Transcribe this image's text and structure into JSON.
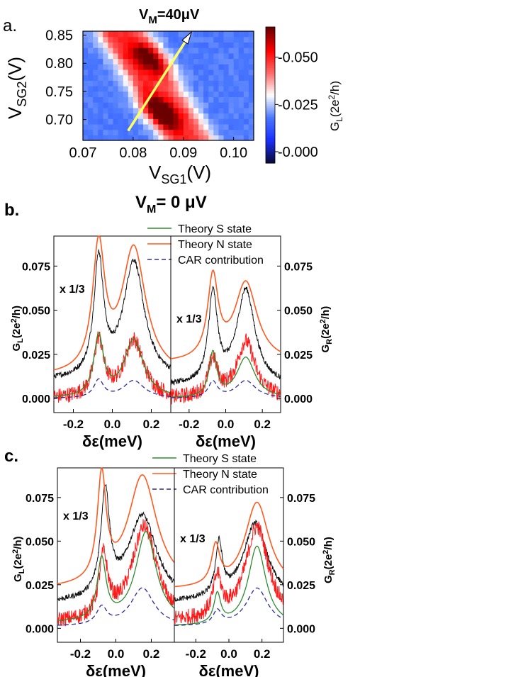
{
  "panel_a": {
    "letter": "a.",
    "title_v": "V",
    "title_sub": "M",
    "title_rest": "=40μV"
  },
  "panel_b": {
    "letter": "b.",
    "title_v": "V",
    "title_sub": "M",
    "title_rest": "= 0 μV"
  },
  "panel_c": {
    "letter": "c."
  },
  "chart_data": [
    {
      "type": "heatmap",
      "title": "VM=40μV",
      "xlabel": "VSG1(V)",
      "ylabel": "VSG2(V)",
      "colorbar_label": "GL(2e2/h)",
      "xlim": [
        0.07,
        0.104
      ],
      "ylim": [
        0.663,
        0.857
      ],
      "xticks": [
        "0.07",
        "0.08",
        "0.09",
        "0.10"
      ],
      "xtick_values": [
        0.07,
        0.08,
        0.09,
        0.1
      ],
      "yticks": [
        "0.85",
        "0.80",
        "0.75",
        "0.70"
      ],
      "ytick_values": [
        0.85,
        0.8,
        0.75,
        0.7
      ],
      "colorbar_range": [
        -0.006,
        0.066
      ],
      "colorbar_ticks": [
        "0.050",
        "0.025",
        "0.000"
      ],
      "colorbar_tick_values": [
        0.05,
        0.025,
        0.0
      ],
      "colormap": [
        "#0a0a3a",
        "#1a30ff",
        "#4a78ff",
        "#ffffff",
        "#ff6a6a",
        "#ff0000",
        "#6a0000"
      ],
      "ridges": [
        {
          "v2_center": 0.809,
          "v1_center": 0.0835,
          "slope_v1_per_v2": -0.07,
          "peak": 0.05
        },
        {
          "v2_center": 0.713,
          "v1_center": 0.0855,
          "slope_v1_per_v2": -0.07,
          "peak": 0.06
        }
      ],
      "arrow": {
        "from": [
          0.079,
          0.68
        ],
        "to": [
          0.091,
          0.847
        ],
        "color": "#ffff66"
      }
    },
    {
      "type": "line",
      "panel": "b",
      "x_label": "δε(meV)",
      "left_y_label": "GL(2e2/h)",
      "right_y_label": "GR(2e2/h)",
      "xlim": [
        -0.3,
        0.3
      ],
      "ylim": [
        -0.008,
        0.092
      ],
      "xticks": [
        "-0.2",
        "0.0",
        "0.2"
      ],
      "xtick_values": [
        -0.2,
        0.0,
        0.2
      ],
      "yticks": [
        "0.075",
        "0.050",
        "0.025",
        "0.000"
      ],
      "ytick_values": [
        0.075,
        0.05,
        0.025,
        0.0
      ],
      "scale_note": "x 1/3",
      "legend": [
        {
          "label": "Theory S state",
          "color": "#2e8b2e",
          "style": "solid"
        },
        {
          "label": "Theory N state",
          "color": "#ff5a1f",
          "style": "solid"
        },
        {
          "label": "CAR contribution",
          "color": "#2a2a9a",
          "style": "dashed"
        }
      ],
      "subpanels": [
        {
          "name": "left",
          "series": {
            "theory_N": {
              "peaks": [
                [
                  -0.07,
                  0.07,
                  0.038
                ],
                [
                  0.11,
                  0.072,
                  0.075
                ]
              ],
              "offset": 0.012
            },
            "data_N_black": {
              "peaks": [
                [
                  -0.07,
                  0.066,
                  0.03
                ],
                [
                  0.11,
                  0.067,
                  0.065
                ]
              ],
              "offset": 0.01,
              "noise": 0.0015
            },
            "theory_S": {
              "peaks": [
                [
                  -0.07,
                  0.034,
                  0.03
                ],
                [
                  0.11,
                  0.033,
                  0.06
                ]
              ],
              "offset": 0.0
            },
            "data_S_red": {
              "peaks": [
                [
                  -0.07,
                  0.032,
                  0.03
                ],
                [
                  0.11,
                  0.033,
                  0.06
                ]
              ],
              "offset": 0.0,
              "noise": 0.0045
            },
            "CAR": {
              "peaks": [
                [
                  -0.07,
                  0.01,
                  0.03
                ],
                [
                  0.11,
                  0.01,
                  0.065
                ]
              ],
              "offset": 0.0
            }
          }
        },
        {
          "name": "right",
          "series": {
            "theory_N": {
              "peaks": [
                [
                  -0.07,
                  0.046,
                  0.035
                ],
                [
                  0.11,
                  0.045,
                  0.075
                ]
              ],
              "offset": 0.02
            },
            "data_N_black": {
              "peaks": [
                [
                  -0.07,
                  0.05,
                  0.03
                ],
                [
                  0.11,
                  0.054,
                  0.06
                ]
              ],
              "offset": 0.007,
              "noise": 0.0015
            },
            "theory_S": {
              "peaks": [
                [
                  -0.07,
                  0.025,
                  0.025
                ],
                [
                  0.11,
                  0.023,
                  0.06
                ]
              ],
              "offset": 0.0
            },
            "data_S_red": {
              "peaks": [
                [
                  -0.07,
                  0.021,
                  0.03
                ],
                [
                  0.11,
                  0.032,
                  0.06
                ]
              ],
              "offset": 0.0,
              "noise": 0.0045
            },
            "CAR": {
              "peaks": [
                [
                  -0.07,
                  0.009,
                  0.03
                ],
                [
                  0.11,
                  0.01,
                  0.065
                ]
              ],
              "offset": 0.0
            }
          }
        }
      ]
    },
    {
      "type": "line",
      "panel": "c",
      "x_label": "δε(meV)",
      "left_y_label": "GL(2e2/h)",
      "right_y_label": "GR(2e2/h)",
      "xlim": [
        -0.33,
        0.33
      ],
      "ylim": [
        -0.008,
        0.092
      ],
      "xticks": [
        "-0.2",
        "0.0",
        "0.2"
      ],
      "xtick_values": [
        -0.2,
        0.0,
        0.2
      ],
      "yticks": [
        "0.075",
        "0.050",
        "0.025",
        "0.000"
      ],
      "ytick_values": [
        0.075,
        0.05,
        0.025,
        0.0
      ],
      "scale_note": "x 1/3",
      "legend": [
        {
          "label": "Theory S state",
          "color": "#2e8b2e",
          "style": "solid"
        },
        {
          "label": "Theory N state",
          "color": "#ff5a1f",
          "style": "solid"
        },
        {
          "label": "CAR contribution",
          "color": "#2a2a9a",
          "style": "dashed"
        }
      ],
      "subpanels": [
        {
          "name": "left",
          "series": {
            "theory_N": {
              "peaks": [
                [
                  -0.08,
                  0.06,
                  0.03
                ],
                [
                  0.15,
                  0.065,
                  0.1
                ]
              ],
              "offset": 0.022
            },
            "data_N_black": {
              "peaks": [
                [
                  -0.06,
                  0.06,
                  0.03
                ],
                [
                  0.15,
                  0.05,
                  0.1
                ]
              ],
              "offset": 0.014,
              "noise": 0.0015
            },
            "theory_S": {
              "peaks": [
                [
                  -0.08,
                  0.035,
                  0.03
                ],
                [
                  0.17,
                  0.052,
                  0.07
                ]
              ],
              "offset": 0.003
            },
            "data_S_red": {
              "peaks": [
                [
                  -0.07,
                  0.035,
                  0.03
                ],
                [
                  0.16,
                  0.055,
                  0.085
                ]
              ],
              "offset": 0.003,
              "noise": 0.0045
            },
            "CAR": {
              "peaks": [
                [
                  -0.08,
                  0.01,
                  0.035
                ],
                [
                  0.15,
                  0.022,
                  0.08
                ]
              ],
              "offset": 0.001
            }
          }
        },
        {
          "name": "right",
          "series": {
            "theory_N": {
              "peaks": [
                [
                  -0.08,
                  0.022,
                  0.03
                ],
                [
                  0.17,
                  0.05,
                  0.09
                ]
              ],
              "offset": 0.022
            },
            "data_N_black": {
              "peaks": [
                [
                  -0.06,
                  0.03,
                  0.025
                ],
                [
                  0.16,
                  0.045,
                  0.09
                ]
              ],
              "offset": 0.015,
              "noise": 0.0015
            },
            "theory_S": {
              "peaks": [
                [
                  -0.07,
                  0.017,
                  0.025
                ],
                [
                  0.17,
                  0.046,
                  0.065
                ]
              ],
              "offset": 0.001
            },
            "data_S_red": {
              "peaks": [
                [
                  -0.07,
                  0.022,
                  0.03
                ],
                [
                  0.17,
                  0.054,
                  0.085
                ]
              ],
              "offset": 0.004,
              "noise": 0.0045
            },
            "CAR": {
              "peaks": [
                [
                  -0.07,
                  0.008,
                  0.03
                ],
                [
                  0.17,
                  0.022,
                  0.08
                ]
              ],
              "offset": 0.001
            }
          }
        }
      ]
    }
  ]
}
